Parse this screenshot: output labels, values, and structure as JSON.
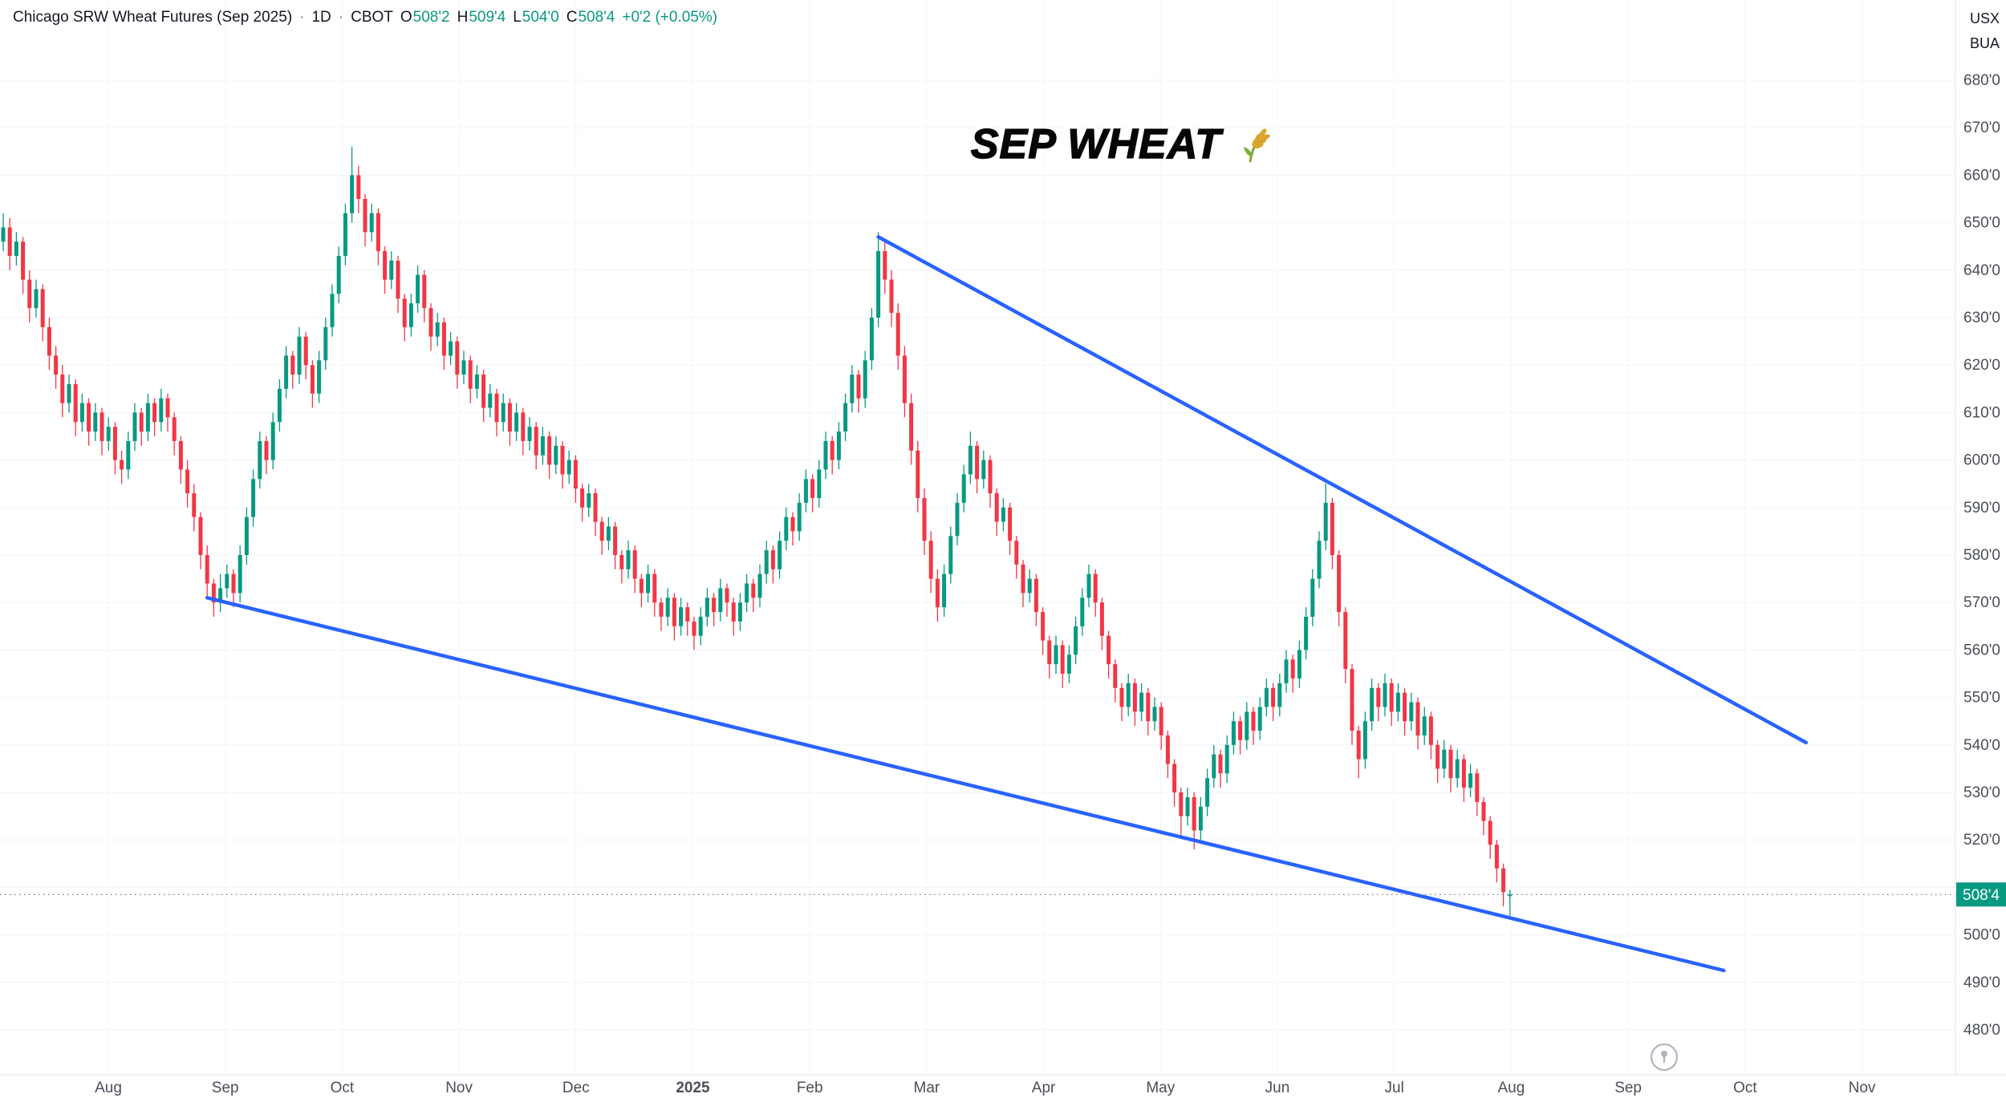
{
  "header": {
    "symbol_line": {
      "title": "Chicago SRW Wheat Futures (Sep 2025)",
      "sep": "·",
      "interval": "1D",
      "exchange": "CBOT",
      "o_label": "O",
      "o_val": "508'2",
      "h_label": "H",
      "h_val": "509'4",
      "l_label": "L",
      "l_val": "504'0",
      "c_label": "C",
      "c_val": "508'4",
      "change": "+0'2 (+0.05%)"
    },
    "top_right": {
      "line1": "USX",
      "line2": "BUA"
    }
  },
  "annotation": {
    "title": "SEP WHEAT"
  },
  "colors": {
    "up": "#089981",
    "down": "#f23645",
    "trendline": "#2962ff",
    "grid_h": "#f0f3fa",
    "grid_v": "#f4f6fa",
    "axis_text": "#4a4e59",
    "axis_border": "#e0e3eb",
    "last_price_line": "#7d818c",
    "badge_bg": "#089981",
    "badge_text": "#ffffff"
  },
  "chart_data": {
    "type": "candlestick",
    "title": "Chicago SRW Wheat Futures (Sep 2025)",
    "interval": "1D",
    "exchange": "CBOT",
    "price_unit": "USX",
    "last_price": {
      "value": 508.5,
      "label": "508'4"
    },
    "price_axis": {
      "min": 480,
      "max": 680,
      "grid_step": 10,
      "ticks": [
        {
          "label": "680'0",
          "value": 680
        },
        {
          "label": "670'0",
          "value": 670
        },
        {
          "label": "660'0",
          "value": 660
        },
        {
          "label": "650'0",
          "value": 650
        },
        {
          "label": "640'0",
          "value": 640
        },
        {
          "label": "630'0",
          "value": 630
        },
        {
          "label": "620'0",
          "value": 620
        },
        {
          "label": "610'0",
          "value": 610
        },
        {
          "label": "600'0",
          "value": 600
        },
        {
          "label": "590'0",
          "value": 590
        },
        {
          "label": "580'0",
          "value": 580
        },
        {
          "label": "570'0",
          "value": 570
        },
        {
          "label": "560'0",
          "value": 560
        },
        {
          "label": "550'0",
          "value": 550
        },
        {
          "label": "540'0",
          "value": 540
        },
        {
          "label": "530'0",
          "value": 530
        },
        {
          "label": "520'0",
          "value": 520
        },
        {
          "label": "500'0",
          "value": 500
        },
        {
          "label": "490'0",
          "value": 490
        },
        {
          "label": "480'0",
          "value": 480
        }
      ]
    },
    "time_axis": {
      "labels": [
        "Aug",
        "Sep",
        "Oct",
        "Nov",
        "Dec",
        "2025",
        "Feb",
        "Mar",
        "Apr",
        "May",
        "Jun",
        "Jul",
        "Aug",
        "Sep",
        "Oct",
        "Nov"
      ],
      "bold_label": "2025"
    },
    "trendlines": [
      {
        "name": "upper-trendline",
        "from": {
          "i": 133,
          "price": 647
        },
        "to": {
          "i": 274,
          "price": 540.5
        }
      },
      {
        "name": "lower-trendline",
        "from": {
          "i": 31,
          "price": 571
        },
        "to": {
          "i": 261.5,
          "price": 492.5
        }
      }
    ],
    "candles": [
      [
        646,
        652,
        644,
        649
      ],
      [
        649,
        651,
        640,
        643
      ],
      [
        643,
        648,
        641,
        646
      ],
      [
        646,
        647,
        635,
        638
      ],
      [
        638,
        640,
        629,
        632
      ],
      [
        632,
        638,
        630,
        636
      ],
      [
        636,
        637,
        625,
        628
      ],
      [
        628,
        630,
        619,
        622
      ],
      [
        622,
        624,
        615,
        618
      ],
      [
        618,
        620,
        609,
        612
      ],
      [
        612,
        618,
        610,
        616
      ],
      [
        616,
        617,
        605,
        608
      ],
      [
        608,
        614,
        606,
        612
      ],
      [
        612,
        613,
        603,
        606
      ],
      [
        606,
        612,
        604,
        610
      ],
      [
        610,
        611,
        601,
        604
      ],
      [
        604,
        609,
        602,
        607
      ],
      [
        607,
        608,
        597,
        600
      ],
      [
        600,
        602,
        595,
        598
      ],
      [
        598,
        606,
        596,
        604
      ],
      [
        604,
        612,
        602,
        610
      ],
      [
        610,
        611,
        603,
        606
      ],
      [
        606,
        614,
        604,
        612
      ],
      [
        612,
        613,
        605,
        608
      ],
      [
        608,
        615,
        606,
        613
      ],
      [
        613,
        614,
        606,
        609
      ],
      [
        609,
        610,
        601,
        604
      ],
      [
        604,
        605,
        595,
        598
      ],
      [
        598,
        600,
        590,
        593
      ],
      [
        593,
        595,
        585,
        588
      ],
      [
        588,
        589,
        577,
        580
      ],
      [
        580,
        582,
        571,
        574
      ],
      [
        574,
        575,
        567,
        570
      ],
      [
        570,
        576,
        568,
        573
      ],
      [
        573,
        578,
        571,
        576
      ],
      [
        576,
        577,
        569,
        572
      ],
      [
        572,
        582,
        570,
        580
      ],
      [
        580,
        590,
        578,
        588
      ],
      [
        588,
        598,
        586,
        596
      ],
      [
        596,
        606,
        594,
        604
      ],
      [
        604,
        605,
        597,
        600
      ],
      [
        600,
        610,
        598,
        608
      ],
      [
        608,
        617,
        606,
        615
      ],
      [
        615,
        624,
        613,
        622
      ],
      [
        622,
        623,
        615,
        618
      ],
      [
        618,
        628,
        616,
        626
      ],
      [
        626,
        627,
        617,
        620
      ],
      [
        620,
        621,
        611,
        614
      ],
      [
        614,
        623,
        612,
        621
      ],
      [
        621,
        630,
        619,
        628
      ],
      [
        628,
        637,
        626,
        635
      ],
      [
        635,
        645,
        633,
        643
      ],
      [
        643,
        654,
        641,
        652
      ],
      [
        652,
        666,
        650,
        660
      ],
      [
        660,
        662,
        652,
        655
      ],
      [
        655,
        656,
        645,
        648
      ],
      [
        648,
        654,
        646,
        652
      ],
      [
        652,
        653,
        641,
        644
      ],
      [
        644,
        645,
        635,
        638
      ],
      [
        638,
        644,
        636,
        642
      ],
      [
        642,
        643,
        631,
        634
      ],
      [
        634,
        635,
        625,
        628
      ],
      [
        628,
        635,
        626,
        633
      ],
      [
        633,
        641,
        631,
        639
      ],
      [
        639,
        640,
        629,
        632
      ],
      [
        632,
        633,
        623,
        626
      ],
      [
        626,
        631,
        624,
        629
      ],
      [
        629,
        630,
        619,
        622
      ],
      [
        622,
        627,
        620,
        625
      ],
      [
        625,
        626,
        615,
        618
      ],
      [
        618,
        623,
        616,
        621
      ],
      [
        621,
        622,
        612,
        615
      ],
      [
        615,
        620,
        613,
        618
      ],
      [
        618,
        619,
        608,
        611
      ],
      [
        611,
        616,
        609,
        614
      ],
      [
        614,
        615,
        605,
        608
      ],
      [
        608,
        614,
        606,
        612
      ],
      [
        612,
        613,
        603,
        606
      ],
      [
        606,
        612,
        604,
        610
      ],
      [
        610,
        611,
        601,
        604
      ],
      [
        604,
        609,
        602,
        607
      ],
      [
        607,
        608,
        598,
        601
      ],
      [
        601,
        607,
        599,
        605
      ],
      [
        605,
        606,
        596,
        599
      ],
      [
        599,
        605,
        597,
        603
      ],
      [
        603,
        604,
        594,
        597
      ],
      [
        597,
        602,
        595,
        600
      ],
      [
        600,
        601,
        591,
        594
      ],
      [
        594,
        595,
        587,
        590
      ],
      [
        590,
        595,
        588,
        593
      ],
      [
        593,
        594,
        584,
        587
      ],
      [
        587,
        588,
        580,
        583
      ],
      [
        583,
        588,
        581,
        586
      ],
      [
        586,
        587,
        577,
        580
      ],
      [
        580,
        581,
        574,
        577
      ],
      [
        577,
        583,
        575,
        581
      ],
      [
        581,
        582,
        572,
        575
      ],
      [
        575,
        576,
        569,
        572
      ],
      [
        572,
        578,
        570,
        576
      ],
      [
        576,
        577,
        567,
        570
      ],
      [
        570,
        571,
        564,
        567
      ],
      [
        567,
        573,
        565,
        571
      ],
      [
        571,
        572,
        562,
        565
      ],
      [
        565,
        571,
        563,
        569
      ],
      [
        569,
        570,
        563,
        566
      ],
      [
        566,
        567,
        560,
        563
      ],
      [
        563,
        569,
        561,
        567
      ],
      [
        567,
        573,
        565,
        571
      ],
      [
        571,
        572,
        565,
        568
      ],
      [
        568,
        575,
        566,
        573
      ],
      [
        573,
        574,
        567,
        570
      ],
      [
        570,
        571,
        563,
        566
      ],
      [
        566,
        572,
        564,
        570
      ],
      [
        570,
        576,
        568,
        574
      ],
      [
        574,
        575,
        568,
        571
      ],
      [
        571,
        578,
        569,
        576
      ],
      [
        576,
        583,
        574,
        581
      ],
      [
        581,
        582,
        574,
        577
      ],
      [
        577,
        585,
        575,
        583
      ],
      [
        583,
        590,
        581,
        588
      ],
      [
        588,
        589,
        582,
        585
      ],
      [
        585,
        593,
        583,
        591
      ],
      [
        591,
        598,
        589,
        596
      ],
      [
        596,
        597,
        589,
        592
      ],
      [
        592,
        600,
        590,
        598
      ],
      [
        598,
        606,
        596,
        604
      ],
      [
        604,
        605,
        597,
        600
      ],
      [
        600,
        608,
        598,
        606
      ],
      [
        606,
        614,
        604,
        612
      ],
      [
        612,
        620,
        610,
        618
      ],
      [
        618,
        619,
        610,
        613
      ],
      [
        613,
        623,
        611,
        621
      ],
      [
        621,
        632,
        619,
        630
      ],
      [
        630,
        648,
        628,
        644
      ],
      [
        644,
        646,
        635,
        638
      ],
      [
        638,
        640,
        628,
        631
      ],
      [
        631,
        633,
        619,
        622
      ],
      [
        622,
        624,
        609,
        612
      ],
      [
        612,
        614,
        599,
        602
      ],
      [
        602,
        604,
        589,
        592
      ],
      [
        592,
        594,
        580,
        583
      ],
      [
        583,
        585,
        572,
        575
      ],
      [
        575,
        577,
        566,
        569
      ],
      [
        569,
        578,
        567,
        576
      ],
      [
        576,
        586,
        574,
        584
      ],
      [
        584,
        593,
        582,
        591
      ],
      [
        591,
        599,
        589,
        597
      ],
      [
        597,
        606,
        595,
        603
      ],
      [
        603,
        604,
        593,
        596
      ],
      [
        596,
        602,
        594,
        600
      ],
      [
        600,
        601,
        590,
        593
      ],
      [
        593,
        594,
        584,
        587
      ],
      [
        587,
        592,
        585,
        590
      ],
      [
        590,
        591,
        580,
        583
      ],
      [
        583,
        584,
        575,
        578
      ],
      [
        578,
        579,
        569,
        572
      ],
      [
        572,
        577,
        570,
        575
      ],
      [
        575,
        576,
        565,
        568
      ],
      [
        568,
        569,
        559,
        562
      ],
      [
        562,
        563,
        554,
        557
      ],
      [
        557,
        563,
        555,
        561
      ],
      [
        561,
        562,
        552,
        555
      ],
      [
        555,
        561,
        553,
        559
      ],
      [
        559,
        567,
        557,
        565
      ],
      [
        565,
        573,
        563,
        571
      ],
      [
        571,
        578,
        569,
        576
      ],
      [
        576,
        577,
        567,
        570
      ],
      [
        570,
        571,
        560,
        563
      ],
      [
        563,
        564,
        554,
        557
      ],
      [
        557,
        558,
        549,
        552
      ],
      [
        552,
        553,
        545,
        548
      ],
      [
        548,
        555,
        546,
        553
      ],
      [
        553,
        554,
        544,
        547
      ],
      [
        547,
        553,
        545,
        551
      ],
      [
        551,
        552,
        542,
        545
      ],
      [
        545,
        550,
        543,
        548
      ],
      [
        548,
        549,
        539,
        542
      ],
      [
        542,
        543,
        533,
        536
      ],
      [
        536,
        537,
        527,
        530
      ],
      [
        530,
        531,
        521,
        525
      ],
      [
        525,
        531,
        523,
        529
      ],
      [
        529,
        530,
        518,
        522
      ],
      [
        522,
        529,
        520,
        527
      ],
      [
        527,
        535,
        525,
        533
      ],
      [
        533,
        540,
        531,
        538
      ],
      [
        538,
        539,
        531,
        534
      ],
      [
        534,
        542,
        532,
        540
      ],
      [
        540,
        547,
        538,
        545
      ],
      [
        545,
        546,
        538,
        541
      ],
      [
        541,
        549,
        539,
        547
      ],
      [
        547,
        548,
        540,
        543
      ],
      [
        543,
        550,
        541,
        548
      ],
      [
        548,
        554,
        546,
        552
      ],
      [
        552,
        553,
        545,
        548
      ],
      [
        548,
        555,
        546,
        553
      ],
      [
        553,
        560,
        551,
        558
      ],
      [
        558,
        559,
        551,
        554
      ],
      [
        554,
        562,
        552,
        560
      ],
      [
        560,
        569,
        558,
        567
      ],
      [
        567,
        577,
        565,
        575
      ],
      [
        575,
        585,
        573,
        583
      ],
      [
        583,
        595,
        581,
        591
      ],
      [
        591,
        592,
        577,
        580
      ],
      [
        580,
        581,
        565,
        568
      ],
      [
        568,
        569,
        553,
        556
      ],
      [
        556,
        557,
        540,
        543
      ],
      [
        543,
        544,
        533,
        537
      ],
      [
        537,
        547,
        535,
        545
      ],
      [
        545,
        554,
        543,
        552
      ],
      [
        552,
        553,
        545,
        548
      ],
      [
        548,
        555,
        546,
        553
      ],
      [
        553,
        554,
        544,
        547
      ],
      [
        547,
        553,
        545,
        551
      ],
      [
        551,
        552,
        542,
        545
      ],
      [
        545,
        551,
        543,
        549
      ],
      [
        549,
        550,
        539,
        542
      ],
      [
        542,
        548,
        540,
        546
      ],
      [
        546,
        547,
        537,
        540
      ],
      [
        540,
        541,
        532,
        535
      ],
      [
        535,
        541,
        533,
        539
      ],
      [
        539,
        540,
        530,
        533
      ],
      [
        533,
        539,
        531,
        537
      ],
      [
        537,
        538,
        528,
        531
      ],
      [
        531,
        536,
        529,
        534
      ],
      [
        534,
        535,
        525,
        528
      ],
      [
        528,
        529,
        521,
        524
      ],
      [
        524,
        525,
        516,
        519
      ],
      [
        519,
        520,
        511,
        514
      ],
      [
        514,
        515,
        506,
        509
      ],
      [
        508.25,
        509.5,
        504,
        508.5
      ]
    ]
  }
}
